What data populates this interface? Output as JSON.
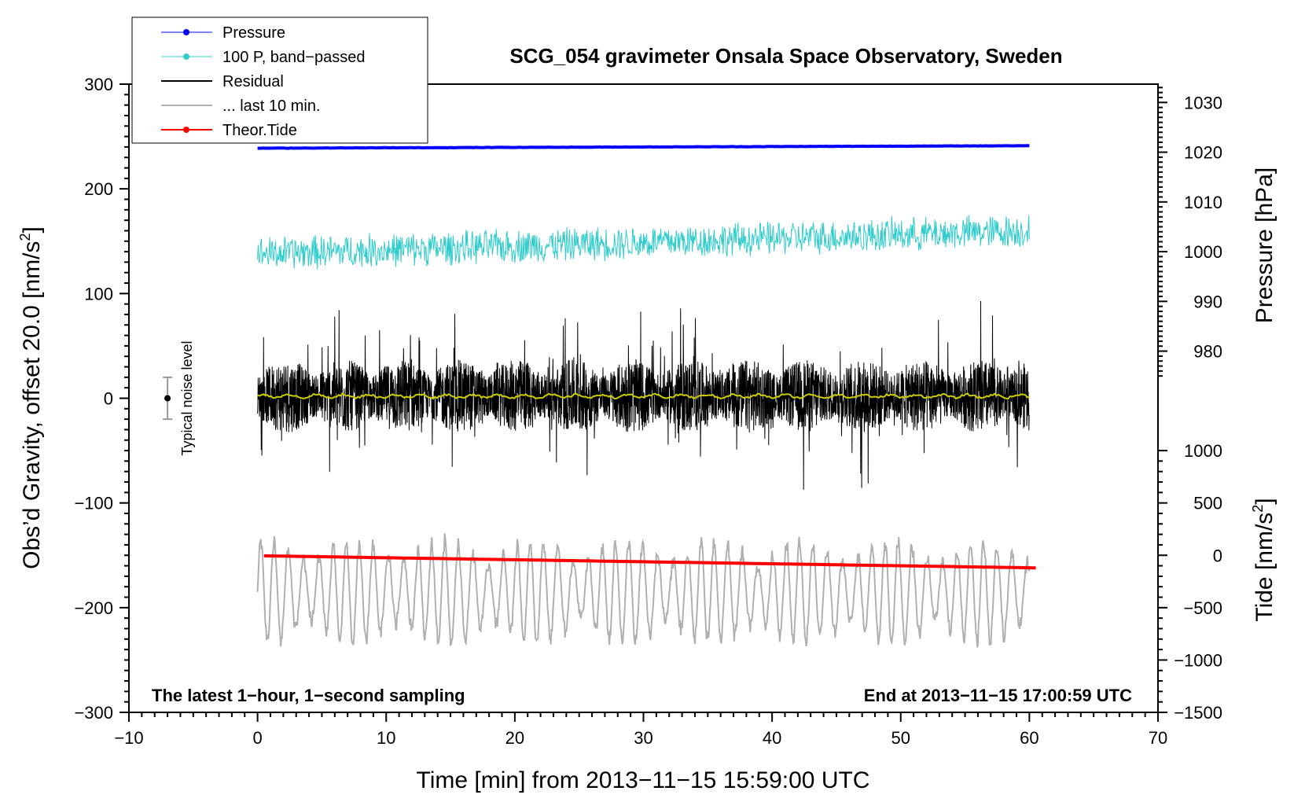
{
  "chart_data": {
    "type": "line",
    "title": "SCG_054 gravimeter Onsala Space Observatory, Sweden",
    "xlabel": "Time [min] from 2013−11−15 15:59:00 UTC",
    "ylabel_left": "Obs’d Gravity, offset 20.0 [nm/s",
    "ylabel_left_sup": "2",
    "ylabel_left_close": "]",
    "ylabel_right_pressure": "Pressure [hPa]",
    "ylabel_right_tide": "Tide [nm/s",
    "ylabel_right_tide_sup": "2",
    "ylabel_right_tide_close": "]",
    "xlim": [
      -10,
      70
    ],
    "ylim": [
      -300,
      300
    ],
    "x_ticks": [
      {
        "v": -10,
        "label": "−10"
      },
      {
        "v": 0,
        "label": "0"
      },
      {
        "v": 10,
        "label": "10"
      },
      {
        "v": 20,
        "label": "20"
      },
      {
        "v": 30,
        "label": "30"
      },
      {
        "v": 40,
        "label": "40"
      },
      {
        "v": 50,
        "label": "50"
      },
      {
        "v": 60,
        "label": "60"
      },
      {
        "v": 70,
        "label": "70"
      }
    ],
    "y_ticks": [
      {
        "v": 300,
        "label": "300"
      },
      {
        "v": 200,
        "label": "200"
      },
      {
        "v": 100,
        "label": "100"
      },
      {
        "v": 0,
        "label": "0"
      },
      {
        "v": -100,
        "label": "−100"
      },
      {
        "v": -200,
        "label": "−200"
      },
      {
        "v": -300,
        "label": "−300"
      }
    ],
    "pressure_axis": {
      "map": {
        "hpa_a": 1020,
        "y_a": 235,
        "hpa_b": 980,
        "y_b": 45
      },
      "ticks": [
        {
          "v": 1030,
          "label": "1030"
        },
        {
          "v": 1020,
          "label": "1020"
        },
        {
          "v": 1010,
          "label": "1010"
        },
        {
          "v": 1000,
          "label": "1000"
        },
        {
          "v": 990,
          "label": "990"
        },
        {
          "v": 980,
          "label": "980"
        }
      ]
    },
    "tide_axis": {
      "map": {
        "tide_a": 0,
        "y_a": -150,
        "tide_b": -1500,
        "y_b": -300
      },
      "ticks": [
        {
          "v": 1000,
          "label": "1000"
        },
        {
          "v": 500,
          "label": "500"
        },
        {
          "v": 0,
          "label": "0"
        },
        {
          "v": -500,
          "label": "−500"
        },
        {
          "v": -1000,
          "label": "−1000"
        },
        {
          "v": -1500,
          "label": "−1500"
        }
      ]
    },
    "series": [
      {
        "name": "Pressure",
        "color": "#0000ff",
        "kind": "pressure",
        "x_range": [
          0,
          60
        ],
        "hpa_start": 1020.8,
        "hpa_end": 1021.3
      },
      {
        "name": "100 P, band−passed",
        "color": "#33cccc",
        "kind": "bandpassed",
        "x_range": [
          0,
          60
        ],
        "center_start": 138,
        "center_end": 160,
        "amplitude": 15
      },
      {
        "name": "Residual",
        "color": "#000000",
        "kind": "residual",
        "x_range": [
          0,
          60
        ],
        "center": 2,
        "amplitude": 35,
        "min": -103,
        "max": 113
      },
      {
        "name": "... last 10 min.",
        "color": "#b0b0b0",
        "kind": "last10",
        "x_range": [
          0,
          60
        ],
        "center": -185,
        "amplitude": 40,
        "min": -255,
        "max": -103
      },
      {
        "name": "Theor.Tide",
        "color": "#ff0000",
        "kind": "tide",
        "x_range": [
          0.5,
          60.5
        ],
        "tide_start": -5,
        "tide_end": -120
      },
      {
        "name": "smoothed residual",
        "color": "#cccc00",
        "kind": "smooth",
        "x_range": [
          0,
          60
        ],
        "center": 2
      }
    ],
    "legend": [
      {
        "label": "Pressure",
        "color": "#0000ff",
        "marker": true,
        "width": 1
      },
      {
        "label": "100 P, band−passed",
        "color": "#33cccc",
        "marker": true,
        "width": 1
      },
      {
        "label": "Residual",
        "color": "#000000",
        "marker": false,
        "width": 2
      },
      {
        "label": "... last 10 min.",
        "color": "#b0b0b0",
        "marker": false,
        "width": 2
      },
      {
        "label": "Theor.Tide",
        "color": "#ff0000",
        "marker": true,
        "width": 2
      }
    ],
    "legend_position": "top-left",
    "noise_bar": {
      "label": "Typical noise level",
      "x": -7,
      "center": 0,
      "half_range": 20
    },
    "annotations": {
      "bottom_left": "The latest 1−hour, 1−second sampling",
      "bottom_right": "End at 2013−11−15 17:00:59 UTC"
    }
  }
}
